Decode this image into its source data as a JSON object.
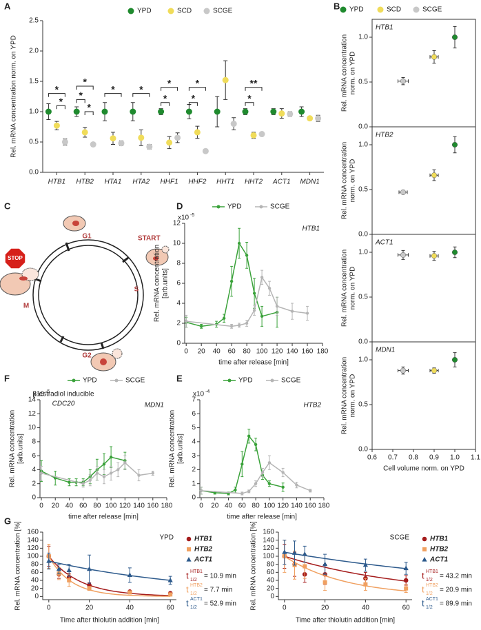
{
  "panel_labels": [
    "A",
    "B",
    "C",
    "D",
    "E",
    "F",
    "G"
  ],
  "diagram": {
    "phases": [
      "G1",
      "START",
      "S",
      "G2",
      "M"
    ],
    "stop": "STOP",
    "caption": [
      "β-estradiol inducible",
      "CDC20"
    ]
  },
  "chart_data": [
    {
      "type": "dot",
      "ylabel": "Rel. mRNA concentration norm. on YPD",
      "categories": [
        "HTB1",
        "HTB2",
        "HTA1",
        "HTA2",
        "HHF1",
        "HHF2",
        "HHT1",
        "HHT2",
        "ACT1",
        "MDN1"
      ],
      "series": [
        {
          "name": "YPD",
          "color": "#1f8a2e",
          "values": [
            1.0,
            1.0,
            1.0,
            1.0,
            1.0,
            1.0,
            1.0,
            1.0,
            1.0,
            1.0
          ],
          "errors": [
            0.13,
            0.08,
            0.15,
            0.15,
            0.05,
            0.12,
            0.25,
            0.05,
            0.05,
            0.08
          ]
        },
        {
          "name": "SCD",
          "color": "#f0dc5a",
          "values": [
            0.77,
            0.66,
            0.56,
            0.57,
            0.49,
            0.66,
            1.52,
            0.61,
            0.97,
            0.89
          ],
          "errors": [
            0.07,
            0.08,
            0.1,
            0.13,
            0.1,
            0.1,
            0.32,
            0.05,
            0.08,
            0.03
          ]
        },
        {
          "name": "SCGE",
          "color": "#c8c8c8",
          "values": [
            0.5,
            0.46,
            0.48,
            0.42,
            0.57,
            0.35,
            0.8,
            0.63,
            0.96,
            0.89
          ],
          "errors": [
            0.05,
            0.02,
            0.04,
            0.04,
            0.08,
            0.03,
            0.1,
            0.03,
            0.04,
            0.05
          ]
        }
      ],
      "ylim": [
        0,
        2.5
      ],
      "yticks": [
        {
          "value": 0,
          "label": "0.0"
        },
        0.5,
        {
          "value": 1,
          "label": "1.0"
        },
        1.5,
        {
          "value": 2,
          "label": "2.0"
        },
        2.5
      ],
      "annotations": [
        "*",
        "*",
        "*",
        "*",
        "*",
        "*",
        "*",
        "*",
        "*",
        "*",
        "*",
        "**",
        "*"
      ]
    },
    {
      "type": "scatter",
      "panel_titles": [
        "HTB1",
        "HTB2",
        "ACT1",
        "MDN1"
      ],
      "ylabel": [
        "Rel. mRNA concentration",
        "norm. on YPD"
      ],
      "xlabel": "Cell volume norm. on YPD",
      "series": [
        {
          "name": "YPD",
          "color": "#1f8a2e",
          "x": [
            1.0,
            1.0,
            1.0,
            1.0
          ],
          "x_errors": [
            0.005,
            0.005,
            0.005,
            0.005
          ],
          "values": [
            1.0,
            1.0,
            1.0,
            1.0
          ],
          "errors": [
            0.12,
            0.09,
            0.06,
            0.08
          ]
        },
        {
          "name": "SCD",
          "color": "#f0dc5a",
          "x": [
            0.9,
            0.9,
            0.9,
            0.9
          ],
          "x_errors": [
            0.02,
            0.02,
            0.02,
            0.02
          ],
          "values": [
            0.78,
            0.66,
            0.96,
            0.88
          ],
          "errors": [
            0.07,
            0.06,
            0.05,
            0.03
          ]
        },
        {
          "name": "SCGE",
          "color": "#c8c8c8",
          "x": [
            0.75,
            0.75,
            0.75,
            0.75
          ],
          "x_errors": [
            0.025,
            0.02,
            0.025,
            0.025
          ],
          "values": [
            0.51,
            0.47,
            0.97,
            0.88
          ],
          "errors": [
            0.04,
            0.02,
            0.05,
            0.04
          ]
        }
      ],
      "xlim": [
        0.6,
        1.1
      ],
      "xticks": [
        0.6,
        0.7,
        0.8,
        0.9,
        {
          "value": 1.0,
          "label": "1.0"
        },
        1.1
      ],
      "ylim": [
        0,
        1.2
      ],
      "yticks": [
        {
          "value": 0,
          "label": "0.0"
        },
        0.5,
        {
          "value": 1.0,
          "label": "1.0"
        }
      ]
    },
    {
      "type": "line",
      "title": "HTB1",
      "y_multiplier": "x10",
      "y_exponent": "-5",
      "ylabel": [
        "Rel. mRNA concentration",
        "[arb.units]"
      ],
      "xlabel": "time after release [min]",
      "series": [
        {
          "name": "YPD",
          "color": "#3aa23a",
          "x": [
            0,
            20,
            40,
            50,
            60,
            70,
            80,
            90,
            100,
            120
          ],
          "values": [
            2.1,
            1.7,
            1.9,
            2.5,
            6.2,
            10,
            8.8,
            5.0,
            2.7,
            3.1
          ],
          "errors": [
            0.5,
            0.2,
            0.3,
            0.4,
            1.5,
            1.5,
            1.3,
            1.5,
            1.0,
            1.5
          ]
        },
        {
          "name": "SCGE",
          "color": "#b5b5b5",
          "x": [
            0,
            60,
            70,
            80,
            90,
            100,
            110,
            120,
            140,
            160
          ],
          "values": [
            2.2,
            1.7,
            1.8,
            2.0,
            3.3,
            6.6,
            5.5,
            3.7,
            3.2,
            3.0
          ],
          "errors": [
            0.6,
            0.2,
            0.2,
            0.3,
            0.5,
            0.7,
            0.7,
            0.9,
            0.8,
            0.7
          ]
        }
      ],
      "xlim": [
        -2,
        180
      ],
      "xticks": [
        0,
        20,
        40,
        60,
        80,
        100,
        120,
        140,
        160,
        180
      ],
      "ylim": [
        0,
        12
      ],
      "yticks": [
        0,
        2,
        4,
        6,
        8,
        10,
        12
      ]
    },
    {
      "type": "line",
      "title": "HTB2",
      "y_multiplier": "x10",
      "y_exponent": "-4",
      "ylabel": [
        "Rel. mRNA concentration",
        "[arb.units]"
      ],
      "xlabel": "time after release [min]",
      "series": [
        {
          "name": "YPD",
          "color": "#3aa23a",
          "x": [
            0,
            20,
            40,
            50,
            60,
            70,
            80,
            90,
            100,
            120
          ],
          "values": [
            0.5,
            0.35,
            0.3,
            0.55,
            2.4,
            4.4,
            3.8,
            1.6,
            1.0,
            0.75
          ],
          "errors": [
            0.25,
            0.1,
            0.1,
            0.2,
            0.9,
            0.5,
            0.45,
            0.3,
            0.2,
            0.3
          ]
        },
        {
          "name": "SCGE",
          "color": "#b5b5b5",
          "x": [
            0,
            60,
            70,
            80,
            90,
            100,
            120,
            140,
            160
          ],
          "values": [
            0.5,
            0.3,
            0.45,
            1.0,
            1.8,
            2.5,
            1.8,
            0.9,
            0.5
          ],
          "errors": [
            0.25,
            0.1,
            0.1,
            0.2,
            0.3,
            0.5,
            0.3,
            0.2,
            0.1
          ]
        }
      ],
      "xlim": [
        -2,
        180
      ],
      "xticks": [
        0,
        20,
        40,
        60,
        80,
        100,
        120,
        140,
        160,
        180
      ],
      "ylim": [
        0,
        7
      ],
      "yticks": [
        0,
        1,
        2,
        3,
        4,
        5,
        6,
        7
      ]
    },
    {
      "type": "line",
      "title": "MDN1",
      "y_multiplier": "x10",
      "y_exponent": "-5",
      "ylabel": [
        "Rel. mRNA concentration",
        "[arb.units]"
      ],
      "xlabel": "time after release [min]",
      "series": [
        {
          "name": "YPD",
          "color": "#3aa23a",
          "x": [
            0,
            20,
            40,
            50,
            60,
            70,
            80,
            90,
            100,
            120
          ],
          "values": [
            3.8,
            2.8,
            2.2,
            2.2,
            2.2,
            3.0,
            4.0,
            4.8,
            5.8,
            5.3
          ],
          "errors": [
            1.5,
            1.0,
            0.5,
            0.5,
            0.5,
            1.0,
            1.5,
            1.5,
            1.5,
            1.2
          ]
        },
        {
          "name": "SCGE",
          "color": "#b5b5b5",
          "x": [
            0,
            60,
            70,
            80,
            90,
            100,
            110,
            120,
            140,
            160
          ],
          "values": [
            3.5,
            2.0,
            2.5,
            3.5,
            3.0,
            3.5,
            4.0,
            5.0,
            3.2,
            3.5
          ],
          "errors": [
            1.0,
            0.5,
            0.8,
            1.0,
            1.0,
            1.0,
            1.0,
            1.0,
            0.8,
            0.3
          ]
        }
      ],
      "xlim": [
        -2,
        180
      ],
      "xticks": [
        0,
        20,
        40,
        60,
        80,
        100,
        120,
        140,
        160,
        180
      ],
      "ylim": [
        0,
        14
      ],
      "yticks": [
        0,
        2,
        4,
        6,
        8,
        10,
        12,
        14
      ]
    },
    {
      "type": "decay",
      "title": "YPD",
      "ylabel": "Rel. mRNA concentration [%]",
      "xlabel": "Time after thiolutin addition [min]",
      "half_life_symbol": "t",
      "half_life_subscript": "1/2",
      "series": [
        {
          "name": "HTB1",
          "color": "#a51c1c",
          "marker": "circle",
          "x": [
            0,
            5,
            10,
            20,
            40,
            60
          ],
          "values": [
            100,
            55,
            48,
            28,
            12,
            8
          ],
          "errors": [
            25,
            10,
            10,
            6,
            3,
            3
          ],
          "half_life": 10.9,
          "half_life_label": "= 10.9 min"
        },
        {
          "name": "HTB2",
          "color": "#f0a060",
          "marker": "square",
          "x": [
            0,
            5,
            10,
            20,
            40,
            60
          ],
          "values": [
            100,
            57,
            40,
            20,
            10,
            5
          ],
          "errors": [
            30,
            15,
            15,
            5,
            3,
            3
          ],
          "half_life": 7.7,
          "half_life_label": "= 7.7 min"
        },
        {
          "name": "ACT1",
          "color": "#2d5a8c",
          "marker": "triangle",
          "x": [
            0,
            5,
            10,
            20,
            40,
            60
          ],
          "values": [
            88,
            68,
            65,
            68,
            53,
            40
          ],
          "errors": [
            20,
            12,
            15,
            35,
            18,
            10
          ],
          "half_life": 52.9,
          "half_life_label": "= 52.9 min"
        }
      ],
      "xlim": [
        -3,
        63
      ],
      "xticks": [
        0,
        20,
        40,
        60
      ],
      "ylim": [
        -8,
        160
      ],
      "yticks": [
        0,
        20,
        40,
        60,
        80,
        100,
        120,
        140,
        160
      ]
    },
    {
      "type": "decay",
      "title": "SCGE",
      "ylabel": "Rel. mRNA concentration [%]",
      "xlabel": "Time after thiolutin addition [min]",
      "half_life_symbol": "t",
      "half_life_subscript": "1/2",
      "series": [
        {
          "name": "HTB1",
          "color": "#a51c1c",
          "marker": "circle",
          "x": [
            0,
            5,
            10,
            20,
            40,
            60
          ],
          "values": [
            100,
            80,
            55,
            55,
            45,
            40
          ],
          "errors": [
            30,
            30,
            20,
            25,
            15,
            12
          ],
          "half_life": 43.2,
          "half_life_label": "= 43.2 min"
        },
        {
          "name": "HTB2",
          "color": "#f0a060",
          "marker": "square",
          "x": [
            0,
            5,
            10,
            20,
            40,
            60
          ],
          "values": [
            100,
            78,
            75,
            35,
            30,
            20
          ],
          "errors": [
            40,
            35,
            30,
            20,
            15,
            10
          ],
          "half_life": 20.9,
          "half_life_label": "= 20.9 min"
        },
        {
          "name": "ACT1",
          "color": "#2d5a8c",
          "marker": "triangle",
          "x": [
            0,
            5,
            10,
            20,
            40,
            60
          ],
          "values": [
            110,
            108,
            105,
            80,
            78,
            70
          ],
          "errors": [
            30,
            30,
            20,
            25,
            15,
            15
          ],
          "half_life": 89.9,
          "half_life_label": "= 89.9 min"
        }
      ],
      "xlim": [
        -3,
        63
      ],
      "xticks": [
        0,
        20,
        40,
        60
      ],
      "ylim": [
        -8,
        160
      ],
      "yticks": [
        0,
        20,
        40,
        60,
        80,
        100,
        120,
        140,
        160
      ]
    }
  ]
}
